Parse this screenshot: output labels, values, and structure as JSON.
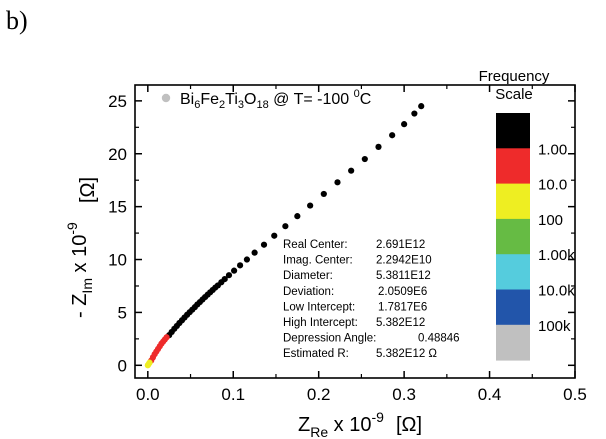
{
  "panel_label": "b)",
  "legend": {
    "text_main": "Bi",
    "subs": [
      "6",
      "2",
      "3",
      "18"
    ],
    "parts": [
      "Fe",
      "Ti",
      "O"
    ],
    "text_tail": " @ T= -100 ",
    "sup": "0",
    "unit": "C",
    "marker_color": "#c0c0c0"
  },
  "axes": {
    "x_title_main": "Z",
    "x_title_sub": "Re",
    "x_title_rest": " x 10",
    "x_title_sup": "-9",
    "x_unit": "[Ω]",
    "y_title_main": "- Z",
    "y_title_sub": "Im",
    "y_title_rest": " x 10",
    "y_title_sup": "-9",
    "y_unit": "[Ω]"
  },
  "fit": {
    "labels": [
      "Real Center:",
      "Imag. Center:",
      "Diameter:",
      "Deviation:",
      "Low Intercept:",
      "High Intercept:",
      "Depression Angle:",
      "Estimated R:"
    ],
    "values": [
      "2.691E12",
      "2.2942E10",
      "5.3811E12",
      "2.0509E6",
      "1.7817E6",
      "5.382E12",
      "0.48846",
      "5.382E12 Ω"
    ]
  },
  "frequency_scale": {
    "title_line1": "Frequency",
    "title_line2": "Scale",
    "labels": [
      "1.00",
      "10.0",
      "100",
      "1.00k",
      "10.0k",
      "100k"
    ],
    "colors": [
      "#000000",
      "#ee2b2b",
      "#eeee22",
      "#66bb44",
      "#55ccdd",
      "#2255aa",
      "#c0c0c0"
    ]
  },
  "chart_data": {
    "type": "scatter",
    "xlim": [
      -0.015,
      0.5
    ],
    "ylim": [
      -1.2,
      26.5
    ],
    "x_ticks": [
      "0.0",
      "0.1",
      "0.2",
      "0.3",
      "0.4",
      "0.5"
    ],
    "x_tick_values": [
      0.0,
      0.1,
      0.2,
      0.3,
      0.4,
      0.5
    ],
    "y_ticks": [
      "0",
      "5",
      "10",
      "15",
      "20",
      "25"
    ],
    "y_tick_values": [
      0,
      5,
      10,
      15,
      20,
      25
    ],
    "series": [
      {
        "color": "#000000",
        "x": [
          0.025,
          0.028,
          0.031,
          0.034,
          0.037,
          0.04,
          0.043,
          0.046,
          0.049,
          0.052,
          0.055,
          0.058,
          0.061,
          0.064,
          0.067,
          0.07,
          0.073,
          0.076,
          0.079,
          0.082,
          0.086,
          0.09,
          0.095,
          0.101,
          0.108,
          0.116,
          0.125,
          0.136,
          0.148,
          0.161,
          0.175,
          0.19,
          0.206,
          0.222,
          0.238,
          0.254,
          0.27,
          0.286,
          0.3,
          0.312,
          0.32
        ],
        "y": [
          2.85,
          3.15,
          3.45,
          3.72,
          4.0,
          4.26,
          4.52,
          4.78,
          5.02,
          5.26,
          5.5,
          5.75,
          5.98,
          6.22,
          6.45,
          6.68,
          6.9,
          7.12,
          7.35,
          7.55,
          7.85,
          8.15,
          8.52,
          8.95,
          9.45,
          10.0,
          10.65,
          11.4,
          12.25,
          13.15,
          14.1,
          15.1,
          16.2,
          17.3,
          18.4,
          19.5,
          20.65,
          21.75,
          22.8,
          23.8,
          24.5
        ]
      },
      {
        "color": "#ee2b2b",
        "x": [
          0.004,
          0.006,
          0.008,
          0.01,
          0.012,
          0.014,
          0.016,
          0.018,
          0.02,
          0.022
        ],
        "y": [
          0.45,
          0.75,
          1.05,
          1.3,
          1.55,
          1.8,
          2.05,
          2.25,
          2.45,
          2.65
        ]
      },
      {
        "color": "#eeee22",
        "x": [
          0.0,
          0.001,
          0.002
        ],
        "y": [
          0.0,
          0.12,
          0.25
        ]
      }
    ]
  }
}
